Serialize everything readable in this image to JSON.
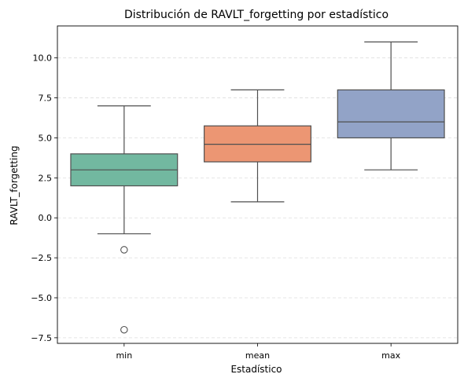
{
  "chart_data": {
    "type": "box",
    "title": "Distribución de RAVLT_forgetting por estadístico",
    "xlabel": "Estadístico",
    "ylabel": "RAVLT_forgetting",
    "ylim": [
      -7.85,
      12.0
    ],
    "yticks": [
      -7.5,
      -5.0,
      -2.5,
      0.0,
      2.5,
      5.0,
      7.5,
      10.0
    ],
    "ytick_labels": [
      "−7.5",
      "−5.0",
      "−2.5",
      "0.0",
      "2.5",
      "5.0",
      "7.5",
      "10.0"
    ],
    "grid": "y dashed",
    "categories": [
      "min",
      "mean",
      "max"
    ],
    "boxes": [
      {
        "category": "min",
        "whisker_low": -1,
        "q1": 2,
        "median": 3,
        "q3": 4,
        "whisker_high": 7,
        "outliers": [
          -2,
          -7
        ],
        "color": "#72b8a0"
      },
      {
        "category": "mean",
        "whisker_low": 1,
        "q1": 3.5,
        "median": 4.6,
        "q3": 5.75,
        "whisker_high": 8,
        "outliers": [],
        "color": "#ec9673"
      },
      {
        "category": "max",
        "whisker_low": 3,
        "q1": 5,
        "median": 6,
        "q3": 8,
        "whisker_high": 11,
        "outliers": [],
        "color": "#92a3c7"
      }
    ]
  }
}
